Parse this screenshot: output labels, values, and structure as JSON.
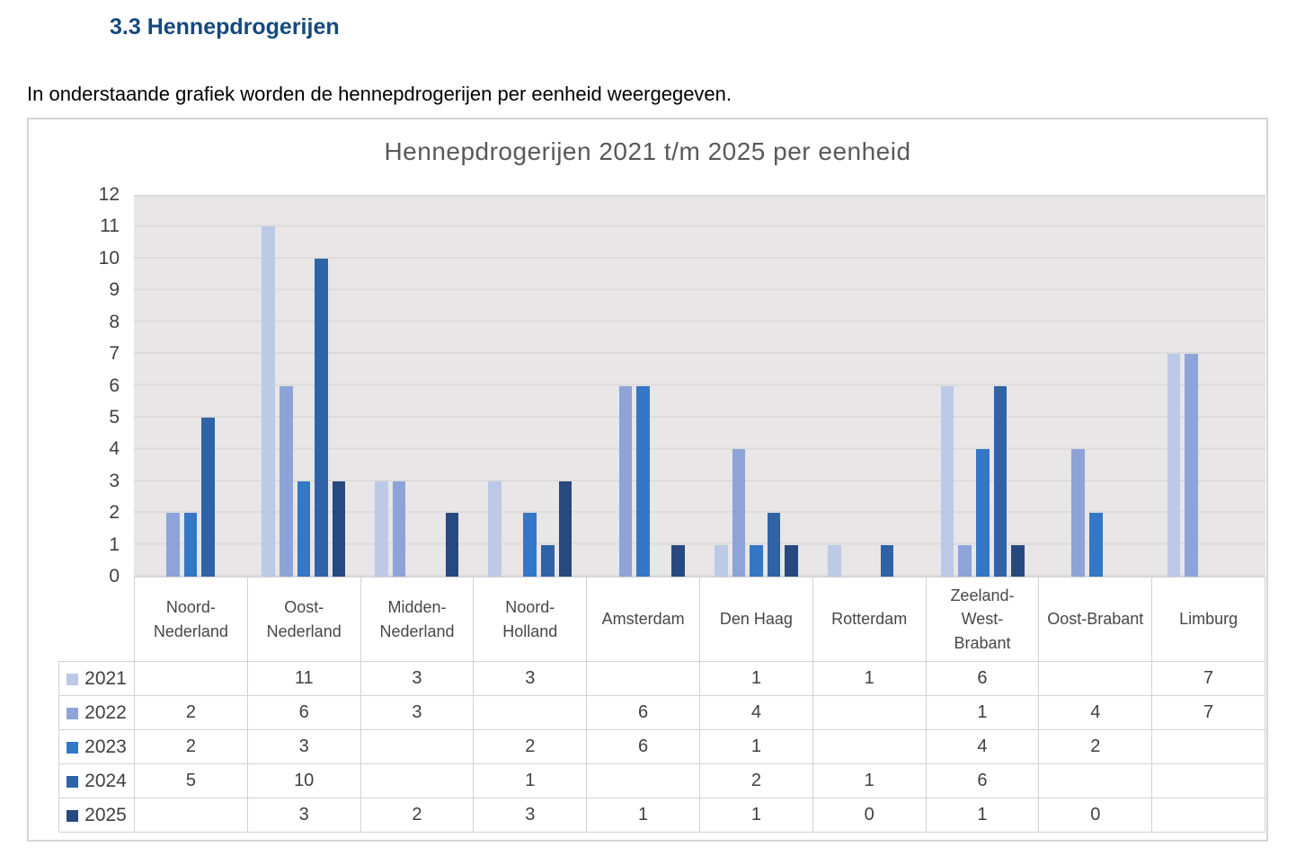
{
  "page": {
    "heading": "3.3 Hennepdrogerijen",
    "intro": "In onderstaande grafiek worden de hennepdrogerijen per eenheid weergegeven."
  },
  "chart_data": {
    "type": "bar",
    "title": "Hennepdrogerijen 2021 t/m 2025 per eenheid",
    "categories": [
      "Noord-Nederland",
      "Oost-Nederland",
      "Midden-Nederland",
      "Noord-Holland",
      "Amsterdam",
      "Den Haag",
      "Rotterdam",
      "Zeeland-West-Brabant",
      "Oost-Brabant",
      "Limburg"
    ],
    "series": [
      {
        "name": "2021",
        "color": "#BCC9E7",
        "values": [
          null,
          11,
          3,
          3,
          null,
          1,
          1,
          6,
          null,
          7
        ]
      },
      {
        "name": "2022",
        "color": "#8EA4D8",
        "values": [
          2,
          6,
          3,
          null,
          6,
          4,
          null,
          1,
          4,
          7
        ]
      },
      {
        "name": "2023",
        "color": "#3377C6",
        "values": [
          2,
          3,
          null,
          2,
          6,
          1,
          null,
          4,
          2,
          null
        ]
      },
      {
        "name": "2024",
        "color": "#2F63A6",
        "values": [
          5,
          10,
          null,
          1,
          null,
          2,
          1,
          6,
          null,
          null
        ]
      },
      {
        "name": "2025",
        "color": "#27497F",
        "values": [
          null,
          3,
          2,
          3,
          1,
          1,
          0,
          1,
          0,
          null
        ]
      }
    ],
    "ylim": [
      0,
      12
    ],
    "ytick_step": 1,
    "grid": true,
    "legend_position": "table-left",
    "table_blank_for_null": true,
    "colors": {
      "plot_bg": "#E8E6E7",
      "gridline": "#DCDADB",
      "table_border": "#D4D2D3",
      "figure_border": "#D6D4D4",
      "axis_text": "#404040",
      "title_text": "#595959",
      "heading_text": "#15497E"
    }
  }
}
